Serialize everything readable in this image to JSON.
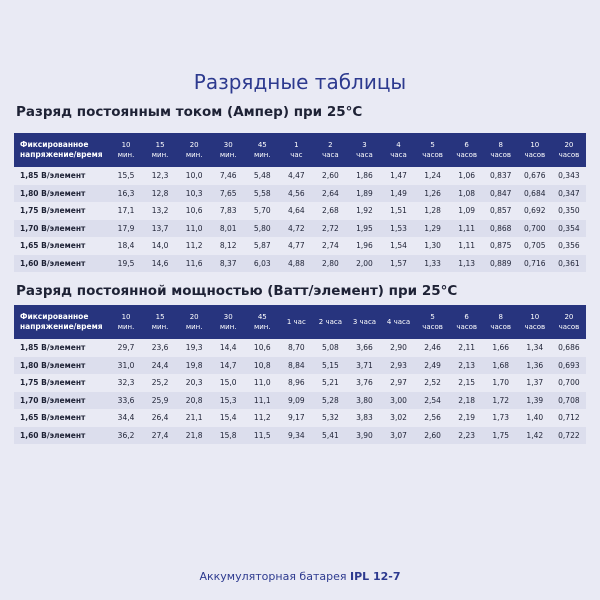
{
  "title": "Разрядные таблицы",
  "sections": [
    {
      "heading": "Разряд постоянным током (Ампер) при 25°C",
      "header": [
        "Фиксированное\nнапряжение/время",
        "10\nмин.",
        "15\nмин.",
        "20\nмин.",
        "30\nмин.",
        "45\nмин.",
        "1\nчас",
        "2\nчаса",
        "3\nчаса",
        "4\nчаса",
        "5\nчасов",
        "6\nчасов",
        "8\nчасов",
        "10\nчасов",
        "20\nчасов"
      ],
      "rows": [
        [
          "1,85 В/элемент",
          "15,5",
          "12,3",
          "10,0",
          "7,46",
          "5,48",
          "4,47",
          "2,60",
          "1,86",
          "1,47",
          "1,24",
          "1,06",
          "0,837",
          "0,676",
          "0,343"
        ],
        [
          "1,80 В/элемент",
          "16,3",
          "12,8",
          "10,3",
          "7,65",
          "5,58",
          "4,56",
          "2,64",
          "1,89",
          "1,49",
          "1,26",
          "1,08",
          "0,847",
          "0,684",
          "0,347"
        ],
        [
          "1,75 В/элемент",
          "17,1",
          "13,2",
          "10,6",
          "7,83",
          "5,70",
          "4,64",
          "2,68",
          "1,92",
          "1,51",
          "1,28",
          "1,09",
          "0,857",
          "0,692",
          "0,350"
        ],
        [
          "1,70 В/элемент",
          "17,9",
          "13,7",
          "11,0",
          "8,01",
          "5,80",
          "4,72",
          "2,72",
          "1,95",
          "1,53",
          "1,29",
          "1,11",
          "0,868",
          "0,700",
          "0,354"
        ],
        [
          "1,65 В/элемент",
          "18,4",
          "14,0",
          "11,2",
          "8,12",
          "5,87",
          "4,77",
          "2,74",
          "1,96",
          "1,54",
          "1,30",
          "1,11",
          "0,875",
          "0,705",
          "0,356"
        ],
        [
          "1,60 В/элемент",
          "19,5",
          "14,6",
          "11,6",
          "8,37",
          "6,03",
          "4,88",
          "2,80",
          "2,00",
          "1,57",
          "1,33",
          "1,13",
          "0,889",
          "0,716",
          "0,361"
        ]
      ]
    },
    {
      "heading": "Разряд постоянной мощностью (Ватт/элемент) при 25°C",
      "header": [
        "Фиксированное\nнапряжение/время",
        "10\nмин.",
        "15\nмин.",
        "20\nмин.",
        "30\nмин.",
        "45\nмин.",
        "1 час",
        "2 часа",
        "3 часа",
        "4 часа",
        "5\nчасов",
        "6\nчасов",
        "8\nчасов",
        "10\nчасов",
        "20\nчасов"
      ],
      "rows": [
        [
          "1,85 В/элемент",
          "29,7",
          "23,6",
          "19,3",
          "14,4",
          "10,6",
          "8,70",
          "5,08",
          "3,66",
          "2,90",
          "2,46",
          "2,11",
          "1,66",
          "1,34",
          "0,686"
        ],
        [
          "1,80 В/элемент",
          "31,0",
          "24,4",
          "19,8",
          "14,7",
          "10,8",
          "8,84",
          "5,15",
          "3,71",
          "2,93",
          "2,49",
          "2,13",
          "1,68",
          "1,36",
          "0,693"
        ],
        [
          "1,75 В/элемент",
          "32,3",
          "25,2",
          "20,3",
          "15,0",
          "11,0",
          "8,96",
          "5,21",
          "3,76",
          "2,97",
          "2,52",
          "2,15",
          "1,70",
          "1,37",
          "0,700"
        ],
        [
          "1,70 В/элемент",
          "33,6",
          "25,9",
          "20,8",
          "15,3",
          "11,1",
          "9,09",
          "5,28",
          "3,80",
          "3,00",
          "2,54",
          "2,18",
          "1,72",
          "1,39",
          "0,708"
        ],
        [
          "1,65 В/элемент",
          "34,4",
          "26,4",
          "21,1",
          "15,4",
          "11,2",
          "9,17",
          "5,32",
          "3,83",
          "3,02",
          "2,56",
          "2,19",
          "1,73",
          "1,40",
          "0,712"
        ],
        [
          "1,60 В/элемент",
          "36,2",
          "27,4",
          "21,8",
          "15,8",
          "11,5",
          "9,34",
          "5,41",
          "3,90",
          "3,07",
          "2,60",
          "2,23",
          "1,75",
          "1,42",
          "0,722"
        ]
      ]
    }
  ],
  "footer": {
    "text": "Аккумуляторная батарея",
    "model": "IPL 12-7"
  }
}
